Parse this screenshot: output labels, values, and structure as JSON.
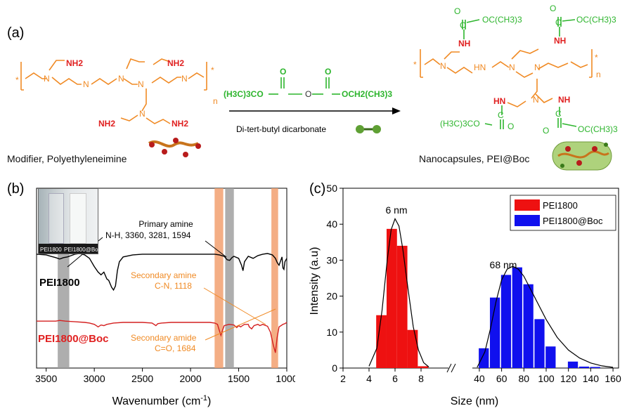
{
  "panel_labels": {
    "a": "(a)",
    "b": "(b)",
    "c": "(c)"
  },
  "scheme": {
    "reagent_left": "(H3C)3CO",
    "reagent_right": "OCH2(CH3)3",
    "reagent_o_single": "O",
    "reagent_o_double": "O",
    "arrow_label": "Di-tert-butyl dicarbonate",
    "left_caption": "Modifier, Polyethyleneimine",
    "right_caption": "Nanocapsules, PEI@Boc",
    "pei_groups": {
      "nh2": "NH2",
      "nh": "N H",
      "n": "N",
      "h": "H",
      "repeat_n": "n",
      "star": "*"
    },
    "boc_groups": {
      "oc": "OC(CH3)3",
      "c": "C",
      "o": "O",
      "nh": "NH",
      "hn": "HN",
      "h3co": "(H3C)3CO",
      "n": "N",
      "star": "*",
      "repeat_n": "n"
    }
  },
  "ftir": {
    "photo_labels": [
      "PEI1800",
      "PEI1800@Boc"
    ],
    "trace_pei_label": "PEI1800",
    "trace_boc_label": "PEI1800@Boc",
    "annot_primary": [
      "Primary amine",
      "N-H, 3360, 3281, 1594"
    ],
    "annot_secondary_amine": [
      "Secondary amine",
      "C-N, 1118"
    ],
    "annot_secondary_amide": [
      "Secondary amide",
      "C=O, 1684"
    ],
    "colors": {
      "pei": "#000000",
      "boc": "#d42020",
      "gray_band": "#a0a0a0",
      "orange_band": "#f2a070"
    }
  },
  "chart_data": [
    {
      "type": "line",
      "panel": "b",
      "xlabel": "Wavenumber (cm-1)",
      "xlim": [
        3600,
        1000
      ],
      "xticks": [
        3500,
        3000,
        2500,
        2000,
        1500,
        1000
      ],
      "highlight_bands": [
        {
          "x": [
            3380,
            3260
          ],
          "color": "gray"
        },
        {
          "x": [
            1750,
            1660
          ],
          "color": "orange"
        },
        {
          "x": [
            1640,
            1550
          ],
          "color": "gray"
        },
        {
          "x": [
            1160,
            1090
          ],
          "color": "orange"
        }
      ],
      "series": [
        {
          "name": "PEI1800",
          "x": [
            3600,
            3500,
            3450,
            3400,
            3360,
            3320,
            3280,
            3240,
            3200,
            3150,
            3100,
            3050,
            3000,
            2960,
            2930,
            2900,
            2870,
            2850,
            2820,
            2800,
            2780,
            2760,
            2740,
            2700,
            2600,
            2500,
            2400,
            2300,
            2200,
            2100,
            2000,
            1900,
            1800,
            1750,
            1700,
            1650,
            1620,
            1594,
            1570,
            1550,
            1500,
            1470,
            1455,
            1440,
            1400,
            1350,
            1300,
            1250,
            1200,
            1150,
            1118,
            1100,
            1080,
            1050,
            1040,
            1030,
            1020,
            1000
          ],
          "y": [
            96,
            95,
            93,
            91,
            89,
            91,
            92,
            94,
            96,
            97,
            95,
            90,
            78,
            70,
            66,
            70,
            60,
            58,
            48,
            44,
            50,
            72,
            85,
            92,
            95,
            96,
            96,
            96,
            96,
            96,
            96,
            96,
            96,
            96,
            95,
            93,
            88,
            87,
            91,
            93,
            90,
            80,
            72,
            85,
            93,
            90,
            94,
            96,
            97,
            95,
            90,
            84,
            80,
            92,
            76,
            74,
            85,
            90
          ]
        },
        {
          "name": "PEI1800@Boc",
          "x": [
            3600,
            3500,
            3450,
            3400,
            3360,
            3300,
            3200,
            3100,
            3050,
            3000,
            2980,
            2960,
            2930,
            2900,
            2870,
            2800,
            2700,
            2600,
            2500,
            2400,
            2360,
            2340,
            2300,
            2200,
            2100,
            2000,
            1900,
            1800,
            1750,
            1720,
            1700,
            1684,
            1670,
            1650,
            1600,
            1550,
            1520,
            1500,
            1480,
            1460,
            1440,
            1400,
            1390,
            1365,
            1340,
            1300,
            1280,
            1250,
            1200,
            1170,
            1140,
            1118,
            1100,
            1080,
            1060,
            1040,
            1020,
            1000
          ],
          "y": [
            77,
            77,
            77,
            77,
            78,
            77,
            76,
            75,
            74,
            72,
            70,
            68,
            71,
            70,
            72,
            74,
            75,
            75,
            75,
            74,
            70,
            73,
            74,
            75,
            75,
            75,
            75,
            75,
            74,
            72,
            62,
            55,
            62,
            70,
            72,
            71,
            67,
            70,
            68,
            70,
            72,
            72,
            68,
            65,
            70,
            72,
            70,
            72,
            69,
            60,
            40,
            28,
            52,
            68,
            70,
            72,
            73,
            75
          ]
        }
      ]
    },
    {
      "type": "bar",
      "panel": "c",
      "xlabel": "Size (nm)",
      "ylabel": "Intensity (a.u)",
      "ylim": [
        0,
        50
      ],
      "yticks": [
        0,
        10,
        20,
        30,
        40,
        50
      ],
      "xticks_left": [
        2,
        4,
        6,
        8
      ],
      "xticks_right": [
        40,
        60,
        80,
        100,
        120,
        140,
        160
      ],
      "xlim_left": [
        2,
        10
      ],
      "xlim_right": [
        35,
        165
      ],
      "peak_labels": [
        "6 nm",
        "68 nm"
      ],
      "series": [
        {
          "name": "PEI1800",
          "color": "#ee1111",
          "x": [
            4.95,
            5.75,
            6.55,
            7.35,
            8.15
          ],
          "values": [
            14.7,
            38.7,
            34.0,
            10.6,
            0.5
          ],
          "fit_x": [
            4.0,
            4.6,
            5.0,
            5.4,
            5.7,
            6.0,
            6.3,
            6.6,
            7.0,
            7.4,
            7.8,
            8.2,
            8.6
          ],
          "fit_y": [
            0.5,
            5.5,
            16.0,
            30.0,
            38.5,
            41.5,
            39.5,
            33.0,
            22.0,
            11.5,
            5.0,
            1.5,
            0.3
          ]
        },
        {
          "name": "PEI1800@Boc",
          "color": "#1010ee",
          "x": [
            44,
            54,
            64,
            74,
            84,
            94,
            104,
            114,
            124,
            134,
            144
          ],
          "values": [
            5.5,
            19.6,
            25.9,
            28.0,
            23.3,
            13.6,
            6.0,
            0.0,
            1.8,
            0.4,
            0.3
          ],
          "fit_x": [
            38,
            45,
            50,
            55,
            60,
            65,
            70,
            75,
            80,
            90,
            100,
            110,
            120,
            130,
            140,
            150,
            160
          ],
          "fit_y": [
            0.2,
            4.5,
            11.0,
            18.5,
            24.5,
            27.5,
            28.3,
            27.5,
            25.5,
            19.5,
            13.5,
            8.5,
            5.0,
            2.8,
            1.4,
            0.6,
            0.2
          ]
        }
      ]
    }
  ]
}
